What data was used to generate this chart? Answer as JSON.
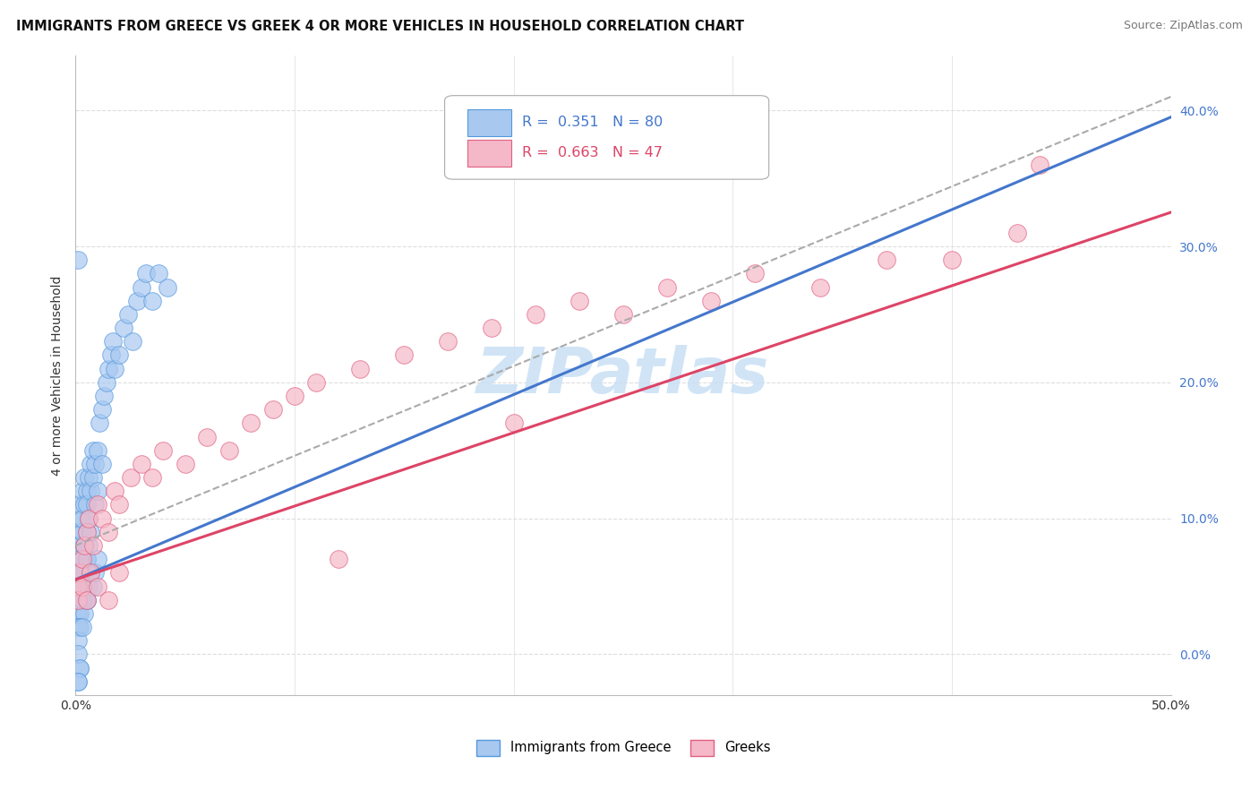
{
  "title": "IMMIGRANTS FROM GREECE VS GREEK 4 OR MORE VEHICLES IN HOUSEHOLD CORRELATION CHART",
  "source": "Source: ZipAtlas.com",
  "ylabel": "4 or more Vehicles in Household",
  "legend_label1": "Immigrants from Greece",
  "legend_label2": "Greeks",
  "xlim": [
    0.0,
    0.5
  ],
  "ylim": [
    -0.03,
    0.44
  ],
  "ytick_vals": [
    0.0,
    0.1,
    0.2,
    0.3,
    0.4
  ],
  "ytick_labels": [
    "0.0%",
    "10.0%",
    "20.0%",
    "30.0%",
    "40.0%"
  ],
  "xtick_vals": [
    0.0,
    0.1,
    0.2,
    0.3,
    0.4,
    0.5
  ],
  "xtick_labels": [
    "0.0%",
    "",
    "",
    "",
    "",
    "50.0%"
  ],
  "r1": 0.351,
  "n1": 80,
  "r2": 0.663,
  "n2": 47,
  "blue_fill": "#A8C8F0",
  "blue_edge": "#5599DD",
  "pink_fill": "#F5B8C8",
  "pink_edge": "#E06080",
  "blue_line_color": "#4477CC",
  "pink_line_color": "#DD4466",
  "gray_dash_color": "#AAAAAA",
  "watermark": "ZIPatlas",
  "watermark_color": "#C8E0F5",
  "grid_color": "#DDDDDD",
  "background": "#FFFFFF"
}
